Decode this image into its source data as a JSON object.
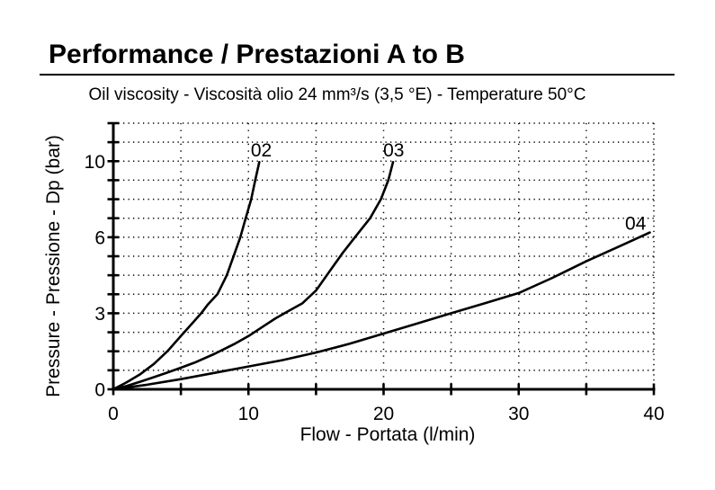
{
  "page": {
    "title": "Performance / Prestazioni A to B",
    "subtitle": "Oil viscosity - Viscosità olio 24 mm³/s (3,5 °E) - Temperature 50°C"
  },
  "chart_data": {
    "type": "line",
    "title": "Performance / Prestazioni A to B",
    "subtitle": "Oil viscosity - Viscosità olio 24 mm³/s (3,5 °E) - Temperature 50°C",
    "xlabel": "Flow - Portata (l/min)",
    "ylabel": "Pressure - Pressione - Dp (bar)",
    "x_axis": {
      "min": 0,
      "max": 40,
      "tick_labels": [
        0,
        10,
        20,
        30,
        40
      ],
      "minor_tick_step": 5
    },
    "y_axis": {
      "unit": "bar",
      "tick_labels": [
        0,
        3,
        6,
        10
      ],
      "minor_rows": 14,
      "scale_note": "labels 0,3,6,10 are evenly spaced every 4 dotted rows; plot top extends 2 rows above the 10 bar line"
    },
    "grid": {
      "style": "dotted",
      "horizontal": "every minor row (0.75 bar below 6, 1 bar above)",
      "vertical": "every 5 l/min"
    },
    "legend_position": "labels at curve ends",
    "colors": {
      "ink": "#000000",
      "background": "#ffffff"
    },
    "series": [
      {
        "name": "02",
        "label_anchor": {
          "x": 10.95,
          "y": 10.6
        },
        "points": [
          [
            0,
            0
          ],
          [
            1,
            0.28
          ],
          [
            2,
            0.6
          ],
          [
            3,
            1.0
          ],
          [
            4,
            1.5
          ],
          [
            5,
            2.1
          ],
          [
            6,
            2.7
          ],
          [
            6.5,
            3.0
          ],
          [
            7,
            3.35
          ],
          [
            7.7,
            3.75
          ],
          [
            8.4,
            4.5
          ],
          [
            9,
            5.4
          ],
          [
            9.4,
            6.0
          ],
          [
            9.8,
            7.0
          ],
          [
            10.2,
            8.0
          ],
          [
            10.5,
            9.0
          ],
          [
            10.8,
            9.95
          ]
        ]
      },
      {
        "name": "03",
        "label_anchor": {
          "x": 20.75,
          "y": 10.6
        },
        "points": [
          [
            0,
            0
          ],
          [
            1,
            0.13
          ],
          [
            2,
            0.3
          ],
          [
            3,
            0.48
          ],
          [
            4,
            0.66
          ],
          [
            5,
            0.85
          ],
          [
            6,
            1.05
          ],
          [
            7.5,
            1.4
          ],
          [
            9,
            1.8
          ],
          [
            10,
            2.1
          ],
          [
            11,
            2.45
          ],
          [
            12,
            2.8
          ],
          [
            13,
            3.1
          ],
          [
            14,
            3.4
          ],
          [
            15,
            3.9
          ],
          [
            16,
            4.65
          ],
          [
            17,
            5.4
          ],
          [
            18,
            6.1
          ],
          [
            19,
            7.0
          ],
          [
            19.8,
            8.0
          ],
          [
            20.35,
            9.0
          ],
          [
            20.7,
            9.95
          ]
        ]
      },
      {
        "name": "04",
        "label_anchor": {
          "x": 38.65,
          "y": 6.75
        },
        "points": [
          [
            0,
            0
          ],
          [
            2.5,
            0.18
          ],
          [
            5,
            0.4
          ],
          [
            7.5,
            0.65
          ],
          [
            10,
            0.9
          ],
          [
            12.5,
            1.15
          ],
          [
            15,
            1.45
          ],
          [
            17.5,
            1.8
          ],
          [
            20,
            2.2
          ],
          [
            22.5,
            2.6
          ],
          [
            25,
            3.0
          ],
          [
            27.5,
            3.4
          ],
          [
            30,
            3.8
          ],
          [
            32.5,
            4.4
          ],
          [
            35,
            5.05
          ],
          [
            37.5,
            5.65
          ],
          [
            39.7,
            6.25
          ]
        ]
      }
    ]
  }
}
